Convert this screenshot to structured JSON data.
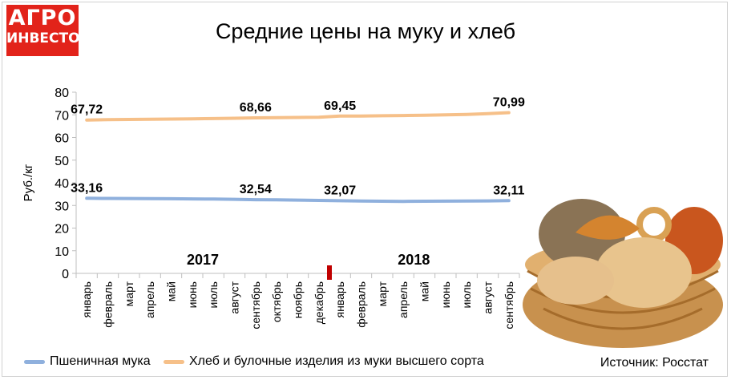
{
  "logo": {
    "line1": "АГРО",
    "line2": "ИНВЕСТОР"
  },
  "title": "Средние цены на муку и хлеб",
  "source": "Источник: Росстат",
  "colors": {
    "brand": "#e2231a",
    "flour": "#8fb0dd",
    "bread": "#f6c089",
    "marker": "#c00000"
  },
  "icons": {
    "logo": "agro-investor-logo",
    "illustration": "bread-basket"
  },
  "chart_data": {
    "type": "line",
    "ylabel": "Руб./кг",
    "xlabel": "",
    "ylim": [
      0,
      80
    ],
    "yticks": [
      0,
      10,
      20,
      30,
      40,
      50,
      60,
      70,
      80
    ],
    "grid": false,
    "legend_position": "bottom",
    "categories": [
      "январь",
      "февраль",
      "март",
      "апрель",
      "май",
      "июнь",
      "июль",
      "август",
      "сентябрь",
      "октябрь",
      "ноябрь",
      "декабрь",
      "январь",
      "февраль",
      "март",
      "апрель",
      "май",
      "июнь",
      "июль",
      "август",
      "сентябрь"
    ],
    "year_labels": [
      {
        "text": "2017",
        "index": 5.5
      },
      {
        "text": "2018",
        "index": 15.5
      }
    ],
    "year_divider_index": 11.5,
    "series": [
      {
        "name": "Пшеничная мука",
        "color": "#8fb0dd",
        "values": [
          33.16,
          33.1,
          33.05,
          33.0,
          32.95,
          32.9,
          32.8,
          32.7,
          32.54,
          32.45,
          32.35,
          32.2,
          32.07,
          31.95,
          31.85,
          31.8,
          31.85,
          31.9,
          31.95,
          32.0,
          32.11
        ],
        "labels": [
          {
            "index": 0,
            "text": "33,16"
          },
          {
            "index": 8,
            "text": "32,54"
          },
          {
            "index": 12,
            "text": "32,07"
          },
          {
            "index": 20,
            "text": "32,11"
          }
        ]
      },
      {
        "name": "Хлеб и булочные изделия из муки высшего сорта",
        "color": "#f6c089",
        "values": [
          67.72,
          67.85,
          67.95,
          68.05,
          68.15,
          68.25,
          68.35,
          68.5,
          68.66,
          68.75,
          68.85,
          68.95,
          69.45,
          69.5,
          69.6,
          69.7,
          69.85,
          70.0,
          70.2,
          70.55,
          70.99
        ],
        "labels": [
          {
            "index": 0,
            "text": "67,72"
          },
          {
            "index": 8,
            "text": "68,66"
          },
          {
            "index": 12,
            "text": "69,45"
          },
          {
            "index": 20,
            "text": "70,99"
          }
        ]
      }
    ]
  }
}
